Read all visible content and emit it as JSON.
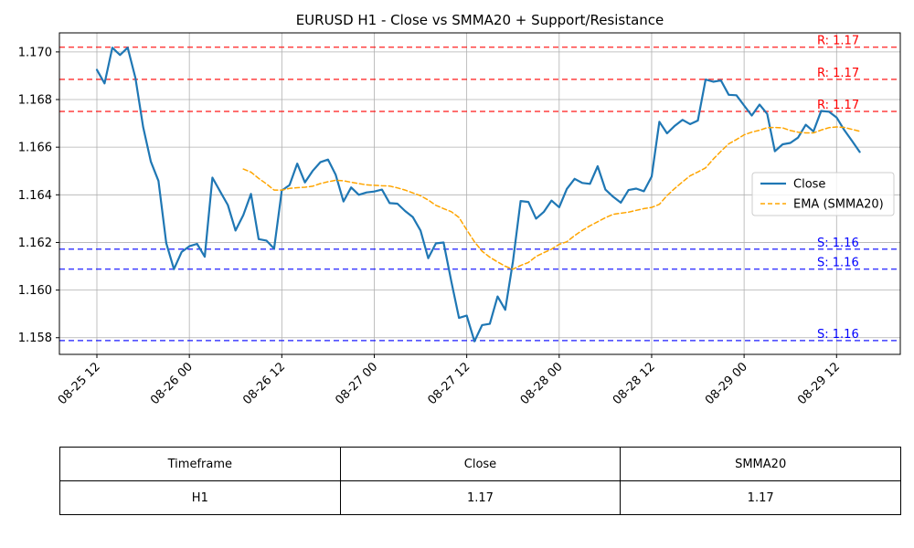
{
  "chart_data": {
    "type": "line",
    "title": "EURUSD H1 - Close vs SMMA20 + Support/Resistance",
    "x_ticks": [
      "08-25 12",
      "08-26 00",
      "08-26 12",
      "08-27 00",
      "08-27 12",
      "08-28 00",
      "08-28 12",
      "08-29 00",
      "08-29 12"
    ],
    "y_ticks": [
      "1.158",
      "1.160",
      "1.162",
      "1.164",
      "1.166",
      "1.168",
      "1.170"
    ],
    "ylim": [
      1.1573,
      1.1708
    ],
    "grid": true,
    "legend_position": "center-right",
    "x_start": "08-25 12:00",
    "series": [
      {
        "name": "Close",
        "color": "#1f77b4",
        "style": "solid",
        "start_index": 0,
        "values": [
          1.16925,
          1.16868,
          1.17018,
          1.16987,
          1.17018,
          1.1689,
          1.16685,
          1.1654,
          1.16458,
          1.16197,
          1.16088,
          1.1616,
          1.16184,
          1.16194,
          1.1614,
          1.16472,
          1.16414,
          1.16357,
          1.1625,
          1.16315,
          1.16404,
          1.16214,
          1.16208,
          1.16174,
          1.16418,
          1.16441,
          1.16531,
          1.16452,
          1.165,
          1.16537,
          1.16548,
          1.16484,
          1.16372,
          1.16431,
          1.164,
          1.1641,
          1.16414,
          1.16422,
          1.16365,
          1.16363,
          1.16332,
          1.16307,
          1.1625,
          1.16134,
          1.16196,
          1.162,
          1.16036,
          1.15883,
          1.15893,
          1.15785,
          1.15853,
          1.15858,
          1.15973,
          1.15917,
          1.1612,
          1.16374,
          1.1637,
          1.163,
          1.16328,
          1.16376,
          1.16348,
          1.16425,
          1.16467,
          1.1645,
          1.16446,
          1.1652,
          1.16422,
          1.16392,
          1.16367,
          1.1642,
          1.16426,
          1.16415,
          1.16477,
          1.16707,
          1.16658,
          1.1669,
          1.16715,
          1.16697,
          1.16712,
          1.16884,
          1.16875,
          1.1688,
          1.1682,
          1.16818,
          1.16775,
          1.16733,
          1.16779,
          1.1674,
          1.16583,
          1.16612,
          1.16618,
          1.1664,
          1.16694,
          1.16666,
          1.16752,
          1.16749,
          1.16725,
          1.16672,
          1.16627,
          1.1658
        ]
      },
      {
        "name": "EMA (SMMA20)",
        "color": "#ffa500",
        "style": "dashed",
        "start_index": 19,
        "values": [
          1.16508,
          1.16495,
          1.16469,
          1.16446,
          1.1642,
          1.1642,
          1.16427,
          1.1643,
          1.16432,
          1.16436,
          1.16447,
          1.16455,
          1.16461,
          1.16459,
          1.16453,
          1.16447,
          1.16442,
          1.1644,
          1.16438,
          1.16437,
          1.16429,
          1.1642,
          1.16408,
          1.16396,
          1.16378,
          1.16356,
          1.16342,
          1.16329,
          1.16305,
          1.16253,
          1.16203,
          1.16163,
          1.16138,
          1.16118,
          1.161,
          1.16088,
          1.16103,
          1.16116,
          1.16141,
          1.16157,
          1.16172,
          1.16192,
          1.16203,
          1.16229,
          1.16251,
          1.1627,
          1.16287,
          1.16304,
          1.16318,
          1.16323,
          1.16327,
          1.16335,
          1.16342,
          1.16347,
          1.1636,
          1.16397,
          1.16427,
          1.16454,
          1.1648,
          1.16496,
          1.16513,
          1.1655,
          1.16583,
          1.16614,
          1.16632,
          1.16652,
          1.16663,
          1.16671,
          1.16682,
          1.16683,
          1.16681,
          1.1667,
          1.16663,
          1.1666,
          1.1666,
          1.16672,
          1.16682,
          1.16685,
          1.16683,
          1.16675,
          1.16667
        ]
      }
    ],
    "levels": [
      {
        "kind": "resistance",
        "value": 1.1702,
        "label": "R: 1.17",
        "color": "#ff0000"
      },
      {
        "kind": "resistance",
        "value": 1.16885,
        "label": "R: 1.17",
        "color": "#ff0000"
      },
      {
        "kind": "resistance",
        "value": 1.1675,
        "label": "R: 1.17",
        "color": "#ff0000"
      },
      {
        "kind": "support",
        "value": 1.16172,
        "label": "S: 1.16",
        "color": "#0000ff"
      },
      {
        "kind": "support",
        "value": 1.16088,
        "label": "S: 1.16",
        "color": "#0000ff"
      },
      {
        "kind": "support",
        "value": 1.15788,
        "label": "S: 1.16",
        "color": "#0000ff"
      }
    ]
  },
  "table": {
    "headers": [
      "Timeframe",
      "Close",
      "SMMA20"
    ],
    "row": [
      "H1",
      "1.17",
      "1.17"
    ]
  }
}
